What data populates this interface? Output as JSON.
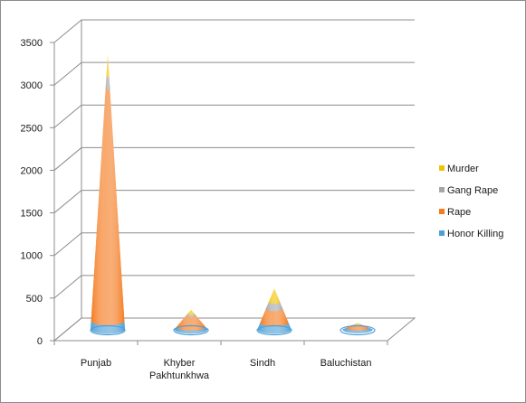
{
  "chart_data": {
    "type": "bar",
    "style": "3d-cone-stacked",
    "categories": [
      "Punjab",
      "Khyber\nPakhtunkhwa",
      "Sindh",
      "Baluchistan"
    ],
    "series": [
      {
        "name": "Honor Killing",
        "values": [
          100,
          30,
          80,
          20
        ],
        "color": "#4f9fd6"
      },
      {
        "name": "Rape",
        "values": [
          2720,
          130,
          160,
          30
        ],
        "color": "#f47b20"
      },
      {
        "name": "Gang Rape",
        "values": [
          150,
          20,
          80,
          10
        ],
        "color": "#a6a6a6"
      },
      {
        "name": "Murder",
        "values": [
          250,
          50,
          160,
          15
        ],
        "color": "#f2c300"
      }
    ],
    "y_ticks": [
      0,
      500,
      1000,
      1500,
      2000,
      2500,
      3000,
      3500
    ],
    "ylim": [
      0,
      3500
    ],
    "grid": true,
    "legend_position": "right",
    "title": "",
    "xlabel": "",
    "ylabel": ""
  }
}
